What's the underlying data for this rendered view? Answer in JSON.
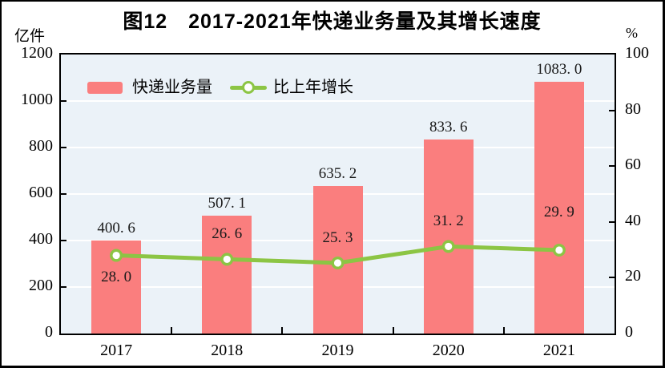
{
  "figure": {
    "title": "图12　2017-2021年快递业务量及其增长速度",
    "left_axis_unit": "亿件",
    "right_axis_unit": "%"
  },
  "legend": {
    "items": [
      {
        "label": "快递业务量",
        "marker": "bar-swatch",
        "color": "#FA7E7E"
      },
      {
        "label": "比上年增长",
        "marker": "line-with-circle-marker",
        "color": "#8CC544"
      }
    ]
  },
  "chart_data": {
    "type": "bar+line",
    "title": "图12　2017-2021年快递业务量及其增长速度",
    "categories": [
      "2017",
      "2018",
      "2019",
      "2020",
      "2021"
    ],
    "series": [
      {
        "name": "快递业务量",
        "type": "bar",
        "axis": "left",
        "unit": "亿件",
        "values": [
          400.6,
          507.1,
          635.2,
          833.6,
          1083.0
        ],
        "data_labels": [
          "400. 6",
          "507. 1",
          "635. 2",
          "833. 6",
          "1083. 0"
        ],
        "color": "#FA7E7E"
      },
      {
        "name": "比上年增长",
        "type": "line",
        "axis": "right",
        "unit": "%",
        "values": [
          28.0,
          26.6,
          25.3,
          31.2,
          29.9
        ],
        "data_labels": [
          "28. 0",
          "26. 6",
          "25. 3",
          "31. 2",
          "29. 9"
        ],
        "color": "#8CC544",
        "marker": "circle-white-fill-green-stroke"
      }
    ],
    "left_axis": {
      "label": "亿件",
      "min": 0,
      "max": 1200,
      "tick_step": 200,
      "tick_labels": [
        "0",
        "200",
        "400",
        "600",
        "800",
        "1000",
        "1200"
      ]
    },
    "right_axis": {
      "label": "%",
      "min": 0,
      "max": 100,
      "tick_step": 20,
      "tick_labels": [
        "0",
        "20",
        "40",
        "60",
        "80",
        "100"
      ]
    },
    "grid": {
      "horizontal": true,
      "color": "#FFFFFF",
      "at_left_values": [
        200,
        400,
        600,
        800,
        1000
      ]
    },
    "legend_position": "top-left-inside-plot",
    "plot_background": "#EBF2F8"
  },
  "colors": {
    "bar": "#FA7E7E",
    "line": "#8CC544",
    "marker_fill": "#FFFFFF",
    "plot_background": "#EBF2F8",
    "gridline": "#FFFFFF",
    "border": "#000000",
    "text": "#000000"
  }
}
